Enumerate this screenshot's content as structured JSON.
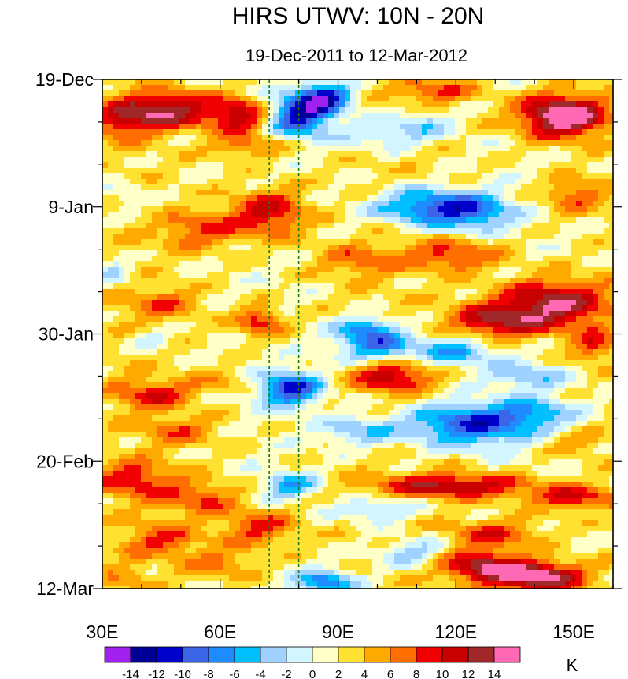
{
  "chart_data": {
    "type": "heatmap",
    "title": "HIRS UTWV: 10N - 20N",
    "subtitle": "19-Dec-2011 to 12-Mar-2012",
    "x_axis": {
      "range": [
        30,
        160
      ],
      "ticks": [
        {
          "value": 30,
          "label": "30E"
        },
        {
          "value": 60,
          "label": "60E"
        },
        {
          "value": 90,
          "label": "90E"
        },
        {
          "value": 120,
          "label": "120E"
        },
        {
          "value": 150,
          "label": "150E"
        }
      ]
    },
    "y_axis": {
      "range_days": [
        0,
        84
      ],
      "direction": "top-to-bottom",
      "ticks": [
        {
          "value": 0,
          "label": "19-Dec"
        },
        {
          "value": 21,
          "label": "9-Jan"
        },
        {
          "value": 42,
          "label": "30-Jan"
        },
        {
          "value": 63,
          "label": "20-Feb"
        },
        {
          "value": 84,
          "label": "12-Mar"
        }
      ]
    },
    "reference_lines_lon": [
      72.5,
      80
    ],
    "colorbar": {
      "units": "K",
      "levels": [
        -14,
        -12,
        -10,
        -8,
        -6,
        -4,
        -2,
        0,
        2,
        4,
        6,
        8,
        10,
        12,
        14
      ],
      "level_labels": [
        "-14",
        "-12",
        "-10",
        "-8",
        "-6",
        "-4",
        "-2",
        "0",
        "2",
        "4",
        "6",
        "8",
        "10",
        "12",
        "14"
      ],
      "colors": [
        "#a020f0",
        "#000096",
        "#0000cd",
        "#3c64e6",
        "#1e8cff",
        "#00bfff",
        "#a0d2ff",
        "#d2f5ff",
        "#ffffc8",
        "#ffe132",
        "#ffaa00",
        "#ff6e00",
        "#f00000",
        "#c80000",
        "#a02828",
        "#ff69b4"
      ]
    },
    "anomaly_field": {
      "description": "Upper-tropospheric water vapour brightness-temperature anomaly (K), longitude vs time",
      "features": [
        {
          "lon": 80,
          "day": 6,
          "amp": -13,
          "lon_width": 8,
          "day_width": 3.5
        },
        {
          "lon": 87,
          "day": 3,
          "amp": -12,
          "lon_width": 7,
          "day_width": 2.5
        },
        {
          "lon": 147,
          "day": 6,
          "amp": 16,
          "lon_width": 11,
          "day_width": 3.5
        },
        {
          "lon": 46,
          "day": 5,
          "amp": 11,
          "lon_width": 12,
          "day_width": 3
        },
        {
          "lon": 65,
          "day": 6,
          "amp": 10,
          "lon_width": 8,
          "day_width": 3
        },
        {
          "lon": 35,
          "day": 7,
          "amp": 6,
          "lon_width": 8,
          "day_width": 3
        },
        {
          "lon": 115,
          "day": 2,
          "amp": 6,
          "lon_width": 10,
          "day_width": 2
        },
        {
          "lon": 102,
          "day": 9,
          "amp": -5,
          "lon_width": 12,
          "day_width": 2.5
        },
        {
          "lon": 112,
          "day": 7,
          "amp": -4,
          "lon_width": 8,
          "day_width": 2.5
        },
        {
          "lon": 68,
          "day": 11,
          "amp": 5,
          "lon_width": 10,
          "day_width": 2
        },
        {
          "lon": 113,
          "day": 21,
          "amp": -11,
          "lon_width": 14,
          "day_width": 3
        },
        {
          "lon": 125,
          "day": 22,
          "amp": -7,
          "lon_width": 10,
          "day_width": 3
        },
        {
          "lon": 72,
          "day": 22,
          "amp": 9,
          "lon_width": 10,
          "day_width": 4
        },
        {
          "lon": 55,
          "day": 25,
          "amp": 6,
          "lon_width": 10,
          "day_width": 3
        },
        {
          "lon": 150,
          "day": 19,
          "amp": 6,
          "lon_width": 8,
          "day_width": 3
        },
        {
          "lon": 36,
          "day": 19,
          "amp": -3,
          "lon_width": 6,
          "day_width": 2.5
        },
        {
          "lon": 120,
          "day": 29,
          "amp": 7,
          "lon_width": 12,
          "day_width": 2.5
        },
        {
          "lon": 95,
          "day": 30,
          "amp": 5,
          "lon_width": 10,
          "day_width": 2.5
        },
        {
          "lon": 33,
          "day": 32,
          "amp": -5,
          "lon_width": 5,
          "day_width": 2
        },
        {
          "lon": 145,
          "day": 37,
          "amp": 12,
          "lon_width": 14,
          "day_width": 4
        },
        {
          "lon": 130,
          "day": 40,
          "amp": 9,
          "lon_width": 12,
          "day_width": 3
        },
        {
          "lon": 70,
          "day": 40,
          "amp": 8,
          "lon_width": 6,
          "day_width": 2.5
        },
        {
          "lon": 45,
          "day": 37,
          "amp": 5,
          "lon_width": 10,
          "day_width": 2.5
        },
        {
          "lon": 43,
          "day": 43,
          "amp": -4,
          "lon_width": 5,
          "day_width": 1.5
        },
        {
          "lon": 97,
          "day": 41,
          "amp": -8,
          "lon_width": 8,
          "day_width": 2
        },
        {
          "lon": 100,
          "day": 44,
          "amp": -10,
          "lon_width": 10,
          "day_width": 2.5
        },
        {
          "lon": 120,
          "day": 45,
          "amp": -8,
          "lon_width": 10,
          "day_width": 2.5
        },
        {
          "lon": 155,
          "day": 44,
          "amp": 6,
          "lon_width": 6,
          "day_width": 3
        },
        {
          "lon": 78,
          "day": 51,
          "amp": -12,
          "lon_width": 8,
          "day_width": 3
        },
        {
          "lon": 104,
          "day": 49,
          "amp": 9,
          "lon_width": 10,
          "day_width": 2.5
        },
        {
          "lon": 138,
          "day": 49,
          "amp": -6,
          "lon_width": 10,
          "day_width": 2
        },
        {
          "lon": 43,
          "day": 52,
          "amp": 7,
          "lon_width": 10,
          "day_width": 2.5
        },
        {
          "lon": 60,
          "day": 50,
          "amp": 3,
          "lon_width": 8,
          "day_width": 2
        },
        {
          "lon": 123,
          "day": 57,
          "amp": -12,
          "lon_width": 16,
          "day_width": 3.5
        },
        {
          "lon": 140,
          "day": 55,
          "amp": -6,
          "lon_width": 10,
          "day_width": 2.5
        },
        {
          "lon": 95,
          "day": 58,
          "amp": -6,
          "lon_width": 10,
          "day_width": 2.5
        },
        {
          "lon": 50,
          "day": 58,
          "amp": 5,
          "lon_width": 10,
          "day_width": 2.5
        },
        {
          "lon": 150,
          "day": 60,
          "amp": 4,
          "lon_width": 8,
          "day_width": 2
        },
        {
          "lon": 78,
          "day": 67,
          "amp": -8,
          "lon_width": 7,
          "day_width": 2
        },
        {
          "lon": 120,
          "day": 67,
          "amp": 10,
          "lon_width": 20,
          "day_width": 2
        },
        {
          "lon": 150,
          "day": 69,
          "amp": 8,
          "lon_width": 12,
          "day_width": 2
        },
        {
          "lon": 38,
          "day": 66,
          "amp": 7,
          "lon_width": 10,
          "day_width": 3
        },
        {
          "lon": 55,
          "day": 69,
          "amp": 6,
          "lon_width": 10,
          "day_width": 3
        },
        {
          "lon": 100,
          "day": 71,
          "amp": -6,
          "lon_width": 10,
          "day_width": 2
        },
        {
          "lon": 70,
          "day": 74,
          "amp": 7,
          "lon_width": 10,
          "day_width": 3
        },
        {
          "lon": 45,
          "day": 76,
          "amp": 6,
          "lon_width": 10,
          "day_width": 2.5
        },
        {
          "lon": 130,
          "day": 75,
          "amp": 7,
          "lon_width": 12,
          "day_width": 2.5
        },
        {
          "lon": 110,
          "day": 78,
          "amp": -6,
          "lon_width": 10,
          "day_width": 2.5
        },
        {
          "lon": 87,
          "day": 83,
          "amp": -10,
          "lon_width": 8,
          "day_width": 2
        },
        {
          "lon": 140,
          "day": 82,
          "amp": 15,
          "lon_width": 12,
          "day_width": 2.5
        },
        {
          "lon": 125,
          "day": 80,
          "amp": 10,
          "lon_width": 10,
          "day_width": 2.5
        },
        {
          "lon": 60,
          "day": 80,
          "amp": 5,
          "lon_width": 10,
          "day_width": 2.5
        },
        {
          "lon": 36,
          "day": 82,
          "amp": 3,
          "lon_width": 6,
          "day_width": 2
        }
      ]
    }
  }
}
